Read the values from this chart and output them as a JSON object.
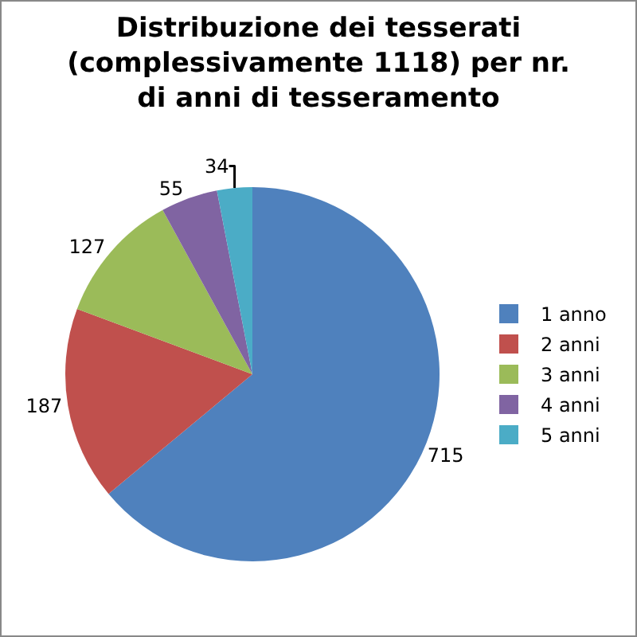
{
  "chart_data": {
    "type": "pie",
    "title": "Distribuzione dei tesserati (complessivamente 1118) per nr. di anni di tesseramento",
    "categories": [
      "1 anno",
      "2 anni",
      "3 anni",
      "4 anni",
      "5 anni"
    ],
    "values": [
      715,
      187,
      127,
      55,
      34
    ],
    "colors": [
      "#4f81bd",
      "#c0504d",
      "#9bbb59",
      "#8064a2",
      "#4bacc6"
    ],
    "data_labels": true,
    "legend": "right"
  }
}
